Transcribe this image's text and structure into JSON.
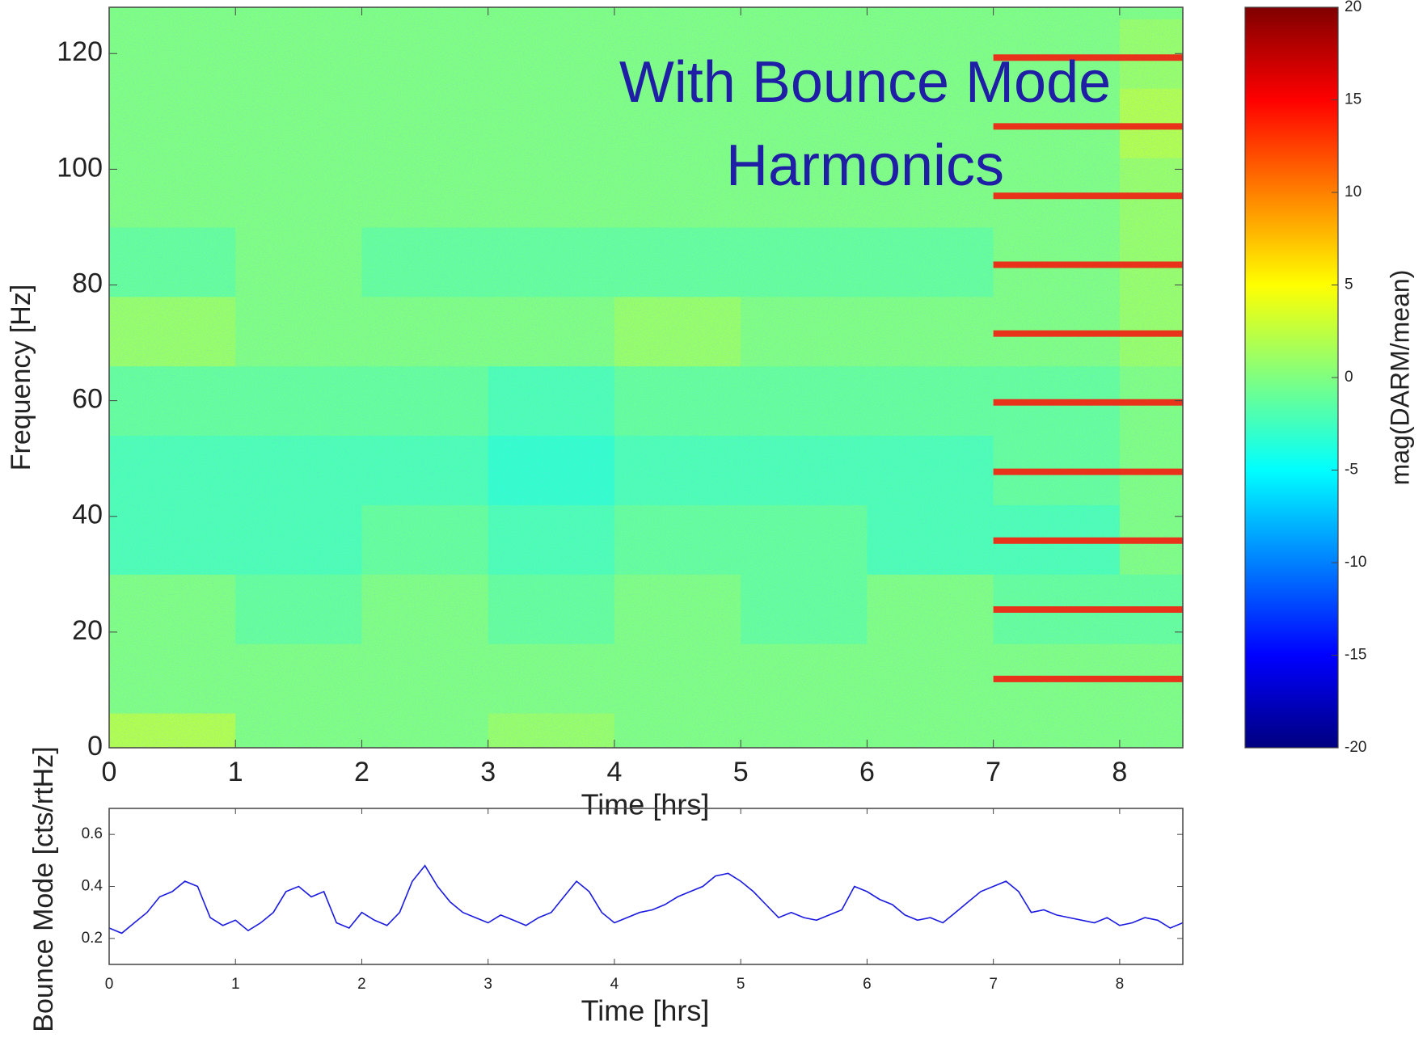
{
  "chart_data": [
    {
      "type": "heatmap",
      "xlabel": "Time [hrs]",
      "ylabel": "Frequency [Hz]",
      "xlim": [
        0,
        8.5
      ],
      "xticks": [
        0,
        1,
        2,
        3,
        4,
        5,
        6,
        7,
        8
      ],
      "ylim": [
        0,
        128
      ],
      "yticks": [
        0,
        20,
        40,
        60,
        80,
        100,
        120
      ],
      "x": [
        0,
        1,
        2,
        3,
        4,
        5,
        6,
        7,
        8,
        8.5
      ],
      "y": [
        0,
        6,
        18,
        30,
        42,
        54,
        66,
        78,
        90,
        102,
        114,
        126,
        128
      ],
      "z": [
        [
          2,
          0,
          0,
          1,
          0,
          0,
          0,
          0,
          0
        ],
        [
          0,
          0,
          0,
          0,
          0,
          0,
          0,
          0,
          0
        ],
        [
          0,
          -1,
          0,
          -1,
          0,
          -1,
          0,
          -1,
          -1
        ],
        [
          -2,
          -2,
          -1,
          -2,
          -1,
          -1,
          -2,
          -2,
          0
        ],
        [
          -2,
          -2,
          -2,
          -3,
          -2,
          -2,
          -2,
          -1,
          0
        ],
        [
          -1,
          -1,
          -1,
          -2,
          -1,
          -1,
          -1,
          -1,
          0
        ],
        [
          1,
          0,
          0,
          0,
          1,
          0,
          0,
          0,
          1
        ],
        [
          -1,
          0,
          -1,
          -1,
          -1,
          -1,
          -1,
          0,
          1
        ],
        [
          0,
          0,
          0,
          0,
          0,
          0,
          0,
          0,
          1
        ],
        [
          0,
          0,
          0,
          0,
          0,
          0,
          0,
          0,
          2
        ],
        [
          0,
          0,
          0,
          0,
          0,
          0,
          0,
          0,
          1
        ],
        [
          0,
          0,
          0,
          0,
          0,
          0,
          0,
          0,
          0
        ]
      ],
      "colormap": "jet",
      "zlim": [
        -20,
        20
      ],
      "zticks": [
        -20,
        -15,
        -10,
        -5,
        0,
        5,
        10,
        15,
        20
      ],
      "colorbar_label": "mag(DARM/mean)",
      "annotation": [
        "With Bounce Mode",
        "Harmonics"
      ],
      "annotation_color": "#1f1fa6",
      "harmonics": {
        "color": "#e8321a",
        "xrange": [
          7,
          8.5
        ],
        "frequencies": [
          11.9,
          23.9,
          35.8,
          47.7,
          59.7,
          71.6,
          83.5,
          95.4,
          107.4,
          119.3
        ]
      }
    },
    {
      "type": "line",
      "xlabel": "Time [hrs]",
      "ylabel": "Bounce Mode [cts/rtHz]",
      "xlim": [
        0,
        8.5
      ],
      "xticks": [
        0,
        1,
        2,
        3,
        4,
        5,
        6,
        7,
        8
      ],
      "ylim": [
        0.1,
        0.7
      ],
      "yticks": [
        0.2,
        0.4,
        0.6
      ],
      "color": "#1a1ae0",
      "x": [
        0,
        0.1,
        0.2,
        0.3,
        0.4,
        0.5,
        0.6,
        0.7,
        0.8,
        0.9,
        1,
        1.1,
        1.2,
        1.3,
        1.4,
        1.5,
        1.6,
        1.7,
        1.8,
        1.9,
        2,
        2.1,
        2.2,
        2.3,
        2.4,
        2.5,
        2.6,
        2.7,
        2.8,
        2.9,
        3,
        3.1,
        3.2,
        3.3,
        3.4,
        3.5,
        3.6,
        3.7,
        3.8,
        3.9,
        4,
        4.1,
        4.2,
        4.3,
        4.4,
        4.5,
        4.6,
        4.7,
        4.8,
        4.9,
        5,
        5.1,
        5.2,
        5.3,
        5.4,
        5.5,
        5.6,
        5.7,
        5.8,
        5.9,
        6,
        6.1,
        6.2,
        6.3,
        6.4,
        6.5,
        6.6,
        6.7,
        6.8,
        6.9,
        7,
        7.1,
        7.2,
        7.3,
        7.4,
        7.5,
        7.6,
        7.7,
        7.8,
        7.9,
        8,
        8.1,
        8.2,
        8.3,
        8.4,
        8.5
      ],
      "values": [
        0.24,
        0.22,
        0.26,
        0.3,
        0.36,
        0.38,
        0.42,
        0.4,
        0.28,
        0.25,
        0.27,
        0.23,
        0.26,
        0.3,
        0.38,
        0.4,
        0.36,
        0.38,
        0.26,
        0.24,
        0.3,
        0.27,
        0.25,
        0.3,
        0.42,
        0.48,
        0.4,
        0.34,
        0.3,
        0.28,
        0.26,
        0.29,
        0.27,
        0.25,
        0.28,
        0.3,
        0.36,
        0.42,
        0.38,
        0.3,
        0.26,
        0.28,
        0.3,
        0.31,
        0.33,
        0.36,
        0.38,
        0.4,
        0.44,
        0.45,
        0.42,
        0.38,
        0.33,
        0.28,
        0.3,
        0.28,
        0.27,
        0.29,
        0.31,
        0.4,
        0.38,
        0.35,
        0.33,
        0.29,
        0.27,
        0.28,
        0.26,
        0.3,
        0.34,
        0.38,
        0.4,
        0.42,
        0.38,
        0.3,
        0.31,
        0.29,
        0.28,
        0.27,
        0.26,
        0.28,
        0.25,
        0.26,
        0.28,
        0.27,
        0.24,
        0.26
      ]
    }
  ]
}
